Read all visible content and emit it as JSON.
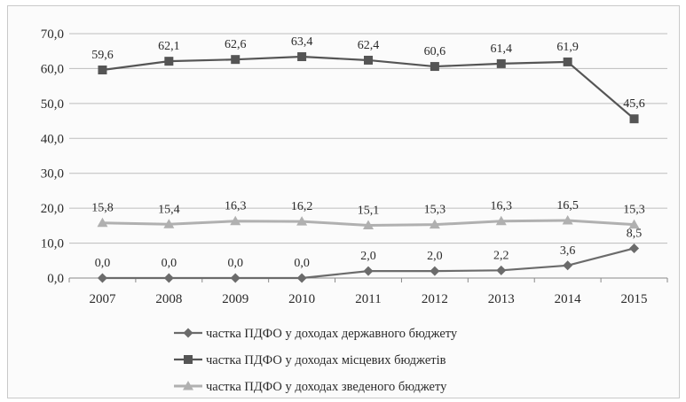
{
  "chart_data": {
    "type": "line",
    "title": "",
    "xlabel": "",
    "ylabel": "",
    "categories": [
      "2007",
      "2008",
      "2009",
      "2010",
      "2011",
      "2012",
      "2013",
      "2014",
      "2015"
    ],
    "y_ticks": [
      "0,0",
      "10,0",
      "20,0",
      "30,0",
      "40,0",
      "50,0",
      "60,0",
      "70,0"
    ],
    "ylim": [
      0,
      70
    ],
    "grid": "horizontal",
    "legend_position": "bottom",
    "series": [
      {
        "name": "частка ПДФО у доходах державного бюджету",
        "marker": "diamond",
        "color": "#6b6b6b",
        "values": [
          0.0,
          0.0,
          0.0,
          0.0,
          2.0,
          2.0,
          2.2,
          3.6,
          8.5
        ],
        "labels": [
          "0,0",
          "0,0",
          "0,0",
          "0,0",
          "2,0",
          "2,0",
          "2,2",
          "3,6",
          "8,5"
        ]
      },
      {
        "name": "частка ПДФО у доходах місцевих бюджетів",
        "marker": "square",
        "color": "#555555",
        "values": [
          59.6,
          62.1,
          62.6,
          63.4,
          62.4,
          60.6,
          61.4,
          61.9,
          45.6
        ],
        "labels": [
          "59,6",
          "62,1",
          "62,6",
          "63,4",
          "62,4",
          "60,6",
          "61,4",
          "61,9",
          "45,6"
        ]
      },
      {
        "name": "частка ПДФО у доходах зведеного бюджету",
        "marker": "triangle",
        "color": "#b0b0b0",
        "values": [
          15.8,
          15.4,
          16.3,
          16.2,
          15.1,
          15.3,
          16.3,
          16.5,
          15.3
        ],
        "labels": [
          "15,8",
          "15,4",
          "16,3",
          "16,2",
          "15,1",
          "15,3",
          "16,3",
          "16,5",
          "15,3"
        ]
      }
    ]
  }
}
